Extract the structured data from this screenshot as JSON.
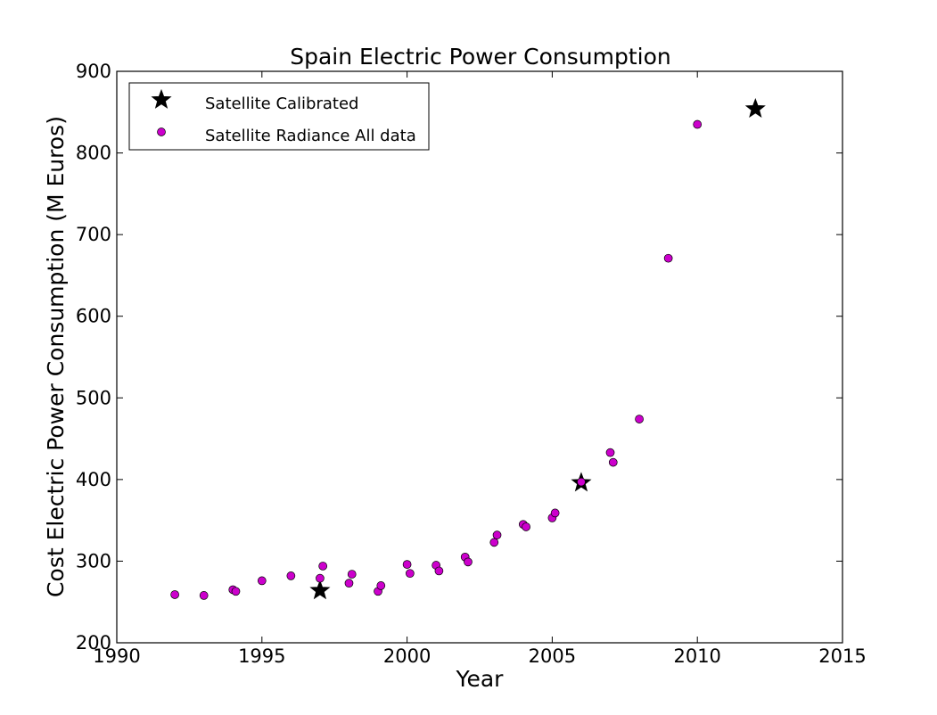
{
  "chart_data": {
    "type": "scatter",
    "title": "Spain Electric Power Consumption",
    "xlabel": "Year",
    "ylabel": "Cost Electric Power Consumption (M Euros)",
    "xlim": [
      1990,
      2015
    ],
    "ylim": [
      200,
      900
    ],
    "xticks": [
      1990,
      1995,
      2000,
      2005,
      2010,
      2015
    ],
    "yticks": [
      200,
      300,
      400,
      500,
      600,
      700,
      800,
      900
    ],
    "grid": false,
    "legend_position": "top-left",
    "series": [
      {
        "name": "Satellite Calibrated",
        "marker": "star",
        "color": "#000000",
        "points": [
          {
            "x": 1997.0,
            "y": 264
          },
          {
            "x": 2006.0,
            "y": 396
          },
          {
            "x": 2012.0,
            "y": 854
          }
        ]
      },
      {
        "name": "Satellite Radiance All data",
        "marker": "circle",
        "color": "#cc00cc",
        "points": [
          {
            "x": 1992.0,
            "y": 259
          },
          {
            "x": 1993.0,
            "y": 258
          },
          {
            "x": 1994.0,
            "y": 265
          },
          {
            "x": 1994.1,
            "y": 263
          },
          {
            "x": 1995.0,
            "y": 276
          },
          {
            "x": 1996.0,
            "y": 282
          },
          {
            "x": 1997.0,
            "y": 279
          },
          {
            "x": 1997.1,
            "y": 294
          },
          {
            "x": 1998.0,
            "y": 273
          },
          {
            "x": 1998.1,
            "y": 284
          },
          {
            "x": 1999.0,
            "y": 263
          },
          {
            "x": 1999.1,
            "y": 270
          },
          {
            "x": 2000.0,
            "y": 296
          },
          {
            "x": 2000.1,
            "y": 285
          },
          {
            "x": 2001.0,
            "y": 295
          },
          {
            "x": 2001.1,
            "y": 288
          },
          {
            "x": 2002.0,
            "y": 305
          },
          {
            "x": 2002.1,
            "y": 299
          },
          {
            "x": 2003.0,
            "y": 323
          },
          {
            "x": 2003.1,
            "y": 332
          },
          {
            "x": 2004.0,
            "y": 345
          },
          {
            "x": 2004.1,
            "y": 342
          },
          {
            "x": 2005.0,
            "y": 353
          },
          {
            "x": 2005.1,
            "y": 359
          },
          {
            "x": 2006.0,
            "y": 397
          },
          {
            "x": 2007.0,
            "y": 433
          },
          {
            "x": 2007.1,
            "y": 421
          },
          {
            "x": 2008.0,
            "y": 474
          },
          {
            "x": 2009.0,
            "y": 671
          },
          {
            "x": 2010.0,
            "y": 835
          }
        ]
      }
    ]
  }
}
